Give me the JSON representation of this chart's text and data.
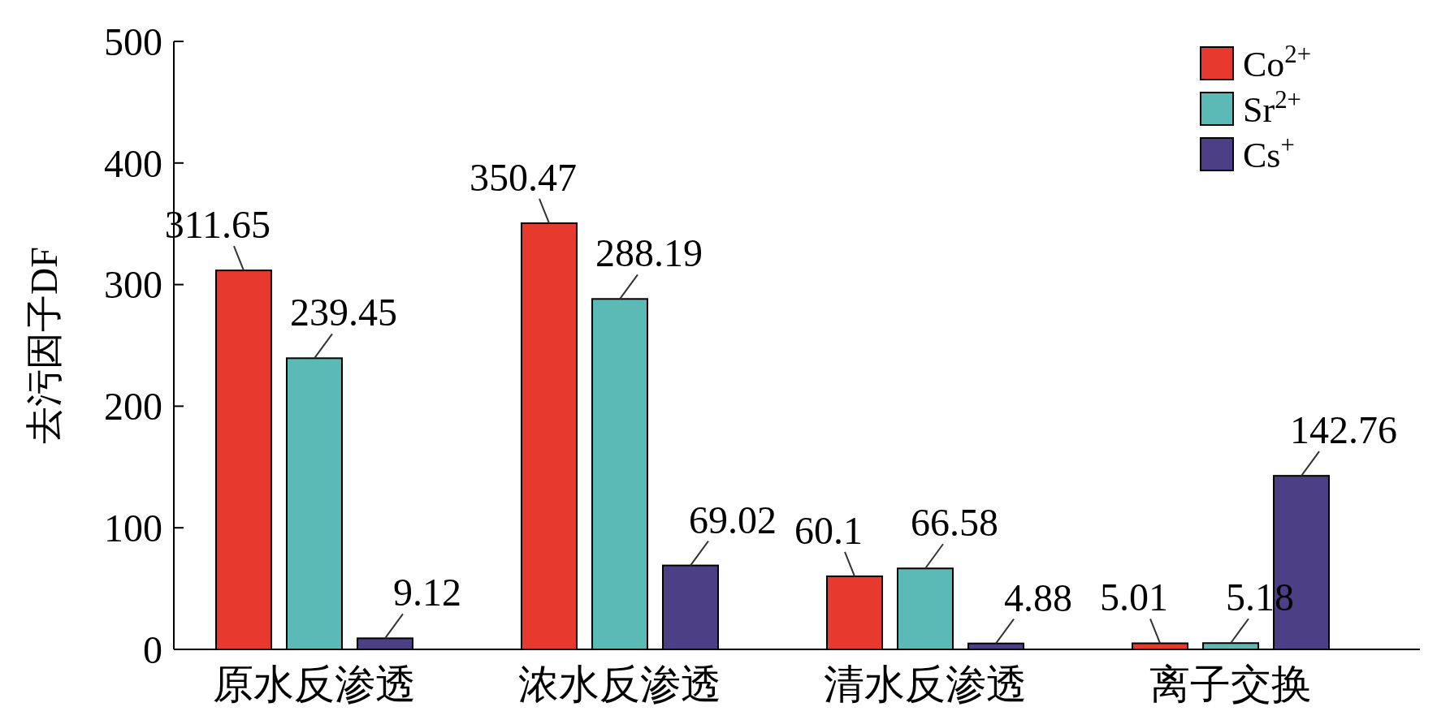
{
  "chart_data": {
    "type": "bar",
    "ylabel": "去污因子DF",
    "categories": [
      "原水反渗透",
      "浓水反渗透",
      "清水反渗透",
      "离子交换"
    ],
    "series": [
      {
        "name": "Co$^{2+}$",
        "color": "#e8392f",
        "values": [
          311.65,
          350.47,
          60.1,
          5.01
        ]
      },
      {
        "name": "Sr$^{2+}$",
        "color": "#5bbab6",
        "values": [
          239.45,
          288.19,
          66.58,
          5.18
        ]
      },
      {
        "name": "Cs$^{+}$",
        "color": "#4d3f86",
        "values": [
          9.12,
          69.02,
          4.88,
          142.76
        ]
      }
    ],
    "ylim": [
      0,
      500
    ],
    "yticks": [
      0,
      100,
      200,
      300,
      400,
      500
    ],
    "data_labels": true,
    "legend": "top right",
    "grid": false
  }
}
